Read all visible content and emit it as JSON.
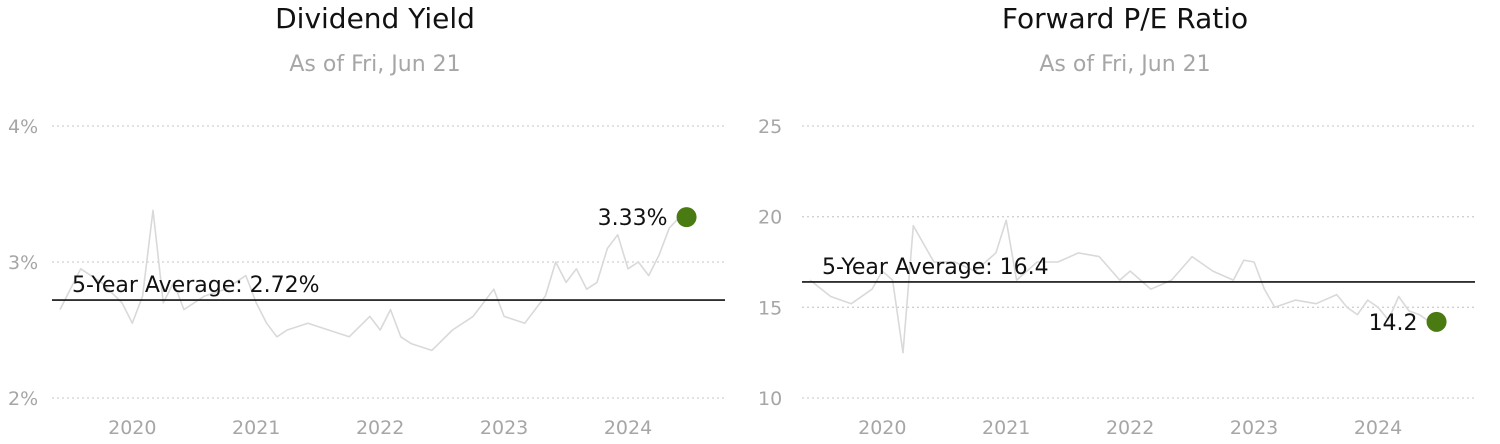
{
  "chart_data": [
    {
      "type": "line",
      "title": "Dividend Yield",
      "subtitle": "As of Fri, Jun 21",
      "y_ticks": [
        "4%",
        "3%",
        "2%"
      ],
      "x_ticks": [
        "2020",
        "2021",
        "2022",
        "2023",
        "2024"
      ],
      "ylim": [
        2,
        4
      ],
      "xlim": [
        "2019-06",
        "2024-07"
      ],
      "grid": true,
      "average": {
        "label": "5-Year Average: 2.72%",
        "value": 2.72
      },
      "current": {
        "label": "3.33%",
        "value": 3.33,
        "x": "2024-06-21"
      },
      "colors": {
        "line": "#d9d9d9",
        "average": "#111111",
        "marker": "#4a7a12",
        "grid": "#d0d0d0",
        "tick": "#a6a6a6"
      },
      "series": [
        {
          "x": [
            "2019-06",
            "2019-08",
            "2019-10",
            "2019-12",
            "2020-01",
            "2020-02",
            "2020-03",
            "2020-04",
            "2020-05",
            "2020-06",
            "2020-08",
            "2020-10",
            "2020-12",
            "2021-01",
            "2021-02",
            "2021-03",
            "2021-04",
            "2021-06",
            "2021-08",
            "2021-10",
            "2021-12",
            "2022-01",
            "2022-02",
            "2022-03",
            "2022-04",
            "2022-06",
            "2022-08",
            "2022-10",
            "2022-12",
            "2023-01",
            "2023-03",
            "2023-05",
            "2023-06",
            "2023-07",
            "2023-08",
            "2023-09",
            "2023-10",
            "2023-11",
            "2023-12",
            "2024-01",
            "2024-02",
            "2024-03",
            "2024-04",
            "2024-05",
            "2024-06"
          ],
          "values": [
            2.65,
            2.95,
            2.85,
            2.7,
            2.55,
            2.75,
            3.38,
            2.7,
            2.85,
            2.65,
            2.75,
            2.8,
            2.9,
            2.7,
            2.55,
            2.45,
            2.5,
            2.55,
            2.5,
            2.45,
            2.6,
            2.5,
            2.65,
            2.45,
            2.4,
            2.35,
            2.5,
            2.6,
            2.8,
            2.6,
            2.55,
            2.75,
            3.0,
            2.85,
            2.95,
            2.8,
            2.85,
            3.1,
            3.2,
            2.95,
            3.0,
            2.9,
            3.05,
            3.25,
            3.33
          ]
        }
      ]
    },
    {
      "type": "line",
      "title": "Forward P/E Ratio",
      "subtitle": "As of Fri, Jun 21",
      "y_ticks": [
        "25",
        "20",
        "15",
        "10"
      ],
      "x_ticks": [
        "2020",
        "2021",
        "2022",
        "2023",
        "2024"
      ],
      "ylim": [
        10,
        25
      ],
      "xlim": [
        "2019-06",
        "2024-07"
      ],
      "grid": true,
      "average": {
        "label": "5-Year Average: 16.4",
        "value": 16.4
      },
      "current": {
        "label": "14.2",
        "value": 14.2,
        "x": "2024-06-21"
      },
      "colors": {
        "line": "#d9d9d9",
        "average": "#111111",
        "marker": "#4a7a12",
        "grid": "#d0d0d0",
        "tick": "#a6a6a6"
      },
      "series": [
        {
          "x": [
            "2019-06",
            "2019-08",
            "2019-10",
            "2019-12",
            "2020-01",
            "2020-02",
            "2020-03",
            "2020-04",
            "2020-05",
            "2020-06",
            "2020-08",
            "2020-10",
            "2020-12",
            "2021-01",
            "2021-02",
            "2021-04",
            "2021-06",
            "2021-08",
            "2021-10",
            "2021-12",
            "2022-01",
            "2022-03",
            "2022-05",
            "2022-07",
            "2022-09",
            "2022-11",
            "2022-12",
            "2023-01",
            "2023-02",
            "2023-03",
            "2023-05",
            "2023-07",
            "2023-09",
            "2023-10",
            "2023-11",
            "2023-12",
            "2024-01",
            "2024-02",
            "2024-03",
            "2024-04",
            "2024-05",
            "2024-06"
          ],
          "values": [
            16.5,
            15.6,
            15.2,
            16.0,
            17.0,
            16.5,
            12.5,
            19.5,
            18.5,
            17.5,
            17.5,
            17.0,
            18.0,
            19.8,
            16.5,
            17.5,
            17.5,
            18.0,
            17.8,
            16.5,
            17.0,
            16.0,
            16.5,
            17.8,
            17.0,
            16.5,
            17.6,
            17.5,
            16.0,
            15.0,
            15.4,
            15.2,
            15.7,
            15.0,
            14.6,
            15.4,
            15.0,
            14.3,
            15.6,
            14.8,
            14.6,
            14.2
          ]
        }
      ]
    }
  ]
}
